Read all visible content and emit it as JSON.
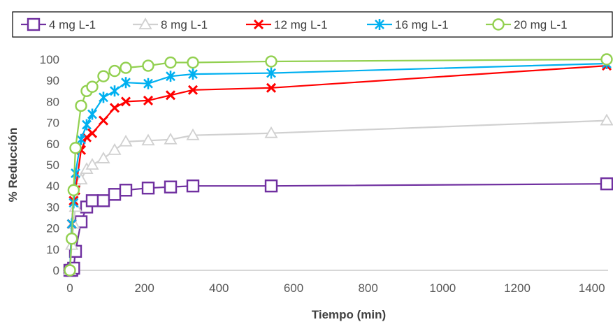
{
  "chart_data": {
    "type": "line",
    "xlabel": "Tiempo (min)",
    "ylabel": "% Reducción",
    "xlim": [
      0,
      1440
    ],
    "ylim": [
      0,
      100
    ],
    "xticks": [
      0,
      200,
      400,
      600,
      800,
      1000,
      1200,
      1400
    ],
    "yticks": [
      0,
      10,
      20,
      30,
      40,
      50,
      60,
      70,
      80,
      90,
      100
    ],
    "grid": false,
    "legend": "top",
    "series": [
      {
        "name": "4 mg L-1",
        "color": "#7030A0",
        "marker": "square",
        "x": [
          0,
          5,
          10,
          15,
          30,
          45,
          60,
          90,
          120,
          150,
          210,
          270,
          330,
          540,
          1440
        ],
        "y": [
          0,
          0,
          1,
          9,
          23,
          30,
          33,
          33,
          36,
          38,
          39,
          39.5,
          40,
          40,
          41
        ]
      },
      {
        "name": "8 mg L-1",
        "color": "#D0D0D0",
        "marker": "triangle",
        "x": [
          0,
          5,
          10,
          15,
          30,
          45,
          60,
          90,
          120,
          150,
          210,
          270,
          330,
          540,
          1440
        ],
        "y": [
          0,
          12,
          22,
          30,
          43,
          48,
          50,
          53,
          57,
          61,
          61.5,
          62,
          64,
          65,
          71
        ]
      },
      {
        "name": "12 mg L-1",
        "color": "#FF0000",
        "marker": "x",
        "x": [
          0,
          5,
          10,
          15,
          30,
          45,
          60,
          90,
          120,
          150,
          210,
          270,
          330,
          540,
          1440
        ],
        "y": [
          0,
          22,
          33,
          38,
          57,
          63,
          65,
          71,
          77,
          80,
          80.5,
          83,
          85.5,
          86.5,
          97
        ]
      },
      {
        "name": "16 mg L-1",
        "color": "#00B0F0",
        "marker": "asterisk",
        "x": [
          0,
          5,
          10,
          15,
          30,
          45,
          60,
          90,
          120,
          150,
          210,
          270,
          330,
          540,
          1440
        ],
        "y": [
          0,
          22,
          32,
          46,
          62,
          69,
          74,
          82,
          85,
          89,
          88.5,
          92,
          93,
          93.5,
          98
        ]
      },
      {
        "name": "20 mg L-1",
        "color": "#92D050",
        "marker": "circle",
        "x": [
          0,
          5,
          10,
          15,
          30,
          45,
          60,
          90,
          120,
          150,
          210,
          270,
          330,
          540,
          1440
        ],
        "y": [
          0,
          15,
          38,
          58,
          78,
          85,
          87,
          92,
          94.5,
          96,
          97,
          98.5,
          98.5,
          99,
          100
        ]
      }
    ]
  }
}
